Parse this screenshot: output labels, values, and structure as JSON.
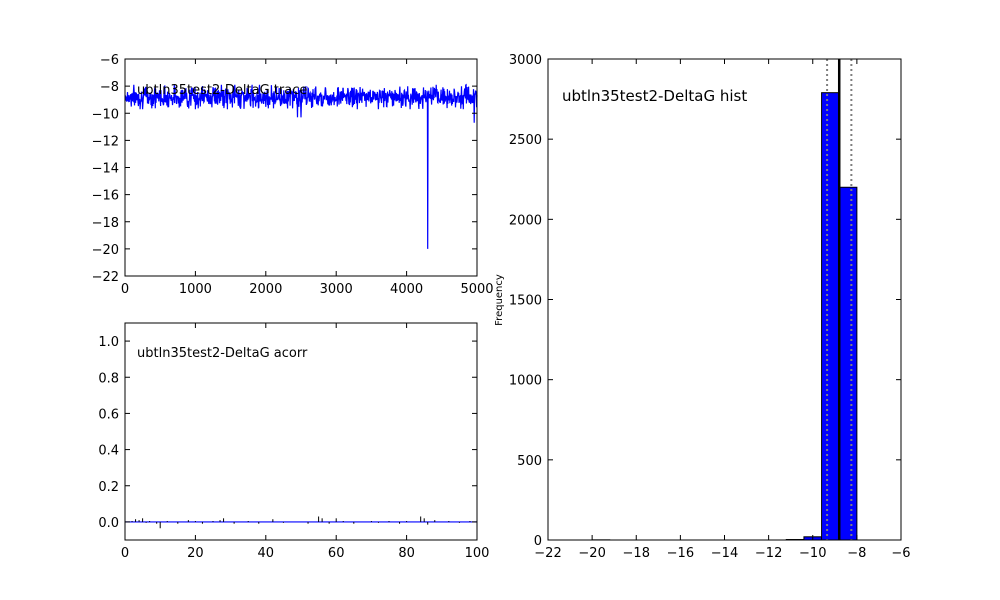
{
  "chart_data": [
    {
      "type": "line",
      "title": "ubtln35test2-DeltaG trace",
      "xlabel": "",
      "ylabel": "",
      "xlim": [
        0,
        5000
      ],
      "ylim": [
        -22,
        -6
      ],
      "x_ticks": [
        "0",
        "1000",
        "2000",
        "3000",
        "4000",
        "5000"
      ],
      "y_ticks": [
        "−6",
        "−8",
        "−10",
        "−12",
        "−14",
        "−16",
        "−18",
        "−20",
        "−22"
      ],
      "series_color": "#0000ff",
      "baseline_mean": -8.8,
      "noise_band": [
        -9.7,
        -7.9
      ],
      "outliers": [
        {
          "x": 4300,
          "y": -20.0
        },
        {
          "x": 1000,
          "y": -9.7
        },
        {
          "x": 2450,
          "y": -10.3
        },
        {
          "x": 2500,
          "y": -10.3
        },
        {
          "x": 4960,
          "y": -10.7
        },
        {
          "x": 1560,
          "y": -7.9
        }
      ]
    },
    {
      "type": "line",
      "title": "ubtln35test2-DeltaG acorr",
      "xlabel": "",
      "ylabel": "",
      "xlim": [
        0,
        100
      ],
      "ylim": [
        -0.1,
        1.1
      ],
      "x_ticks": [
        "0",
        "20",
        "40",
        "60",
        "80",
        "100"
      ],
      "y_ticks": [
        "0.0",
        "0.2",
        "0.4",
        "0.6",
        "0.8",
        "1.0"
      ],
      "series_color": "#0000ff",
      "lag_values": [
        [
          1,
          0.0
        ],
        [
          2,
          0.005
        ],
        [
          3,
          0.015
        ],
        [
          4,
          0.01
        ],
        [
          5,
          0.02
        ],
        [
          6,
          -0.005
        ],
        [
          7,
          0.005
        ],
        [
          8,
          0.0
        ],
        [
          9,
          -0.01
        ],
        [
          10,
          -0.035
        ],
        [
          11,
          0.0
        ],
        [
          12,
          0.005
        ],
        [
          15,
          -0.01
        ],
        [
          18,
          0.01
        ],
        [
          20,
          0.005
        ],
        [
          22,
          -0.01
        ],
        [
          25,
          0.005
        ],
        [
          27,
          0.01
        ],
        [
          28,
          0.02
        ],
        [
          31,
          -0.01
        ],
        [
          35,
          0.005
        ],
        [
          38,
          -0.01
        ],
        [
          42,
          0.015
        ],
        [
          45,
          -0.005
        ],
        [
          50,
          0.0
        ],
        [
          52,
          -0.01
        ],
        [
          55,
          0.03
        ],
        [
          56,
          0.02
        ],
        [
          58,
          -0.01
        ],
        [
          60,
          0.02
        ],
        [
          62,
          0.005
        ],
        [
          65,
          -0.01
        ],
        [
          70,
          0.005
        ],
        [
          72,
          -0.005
        ],
        [
          75,
          0.005
        ],
        [
          78,
          -0.01
        ],
        [
          80,
          0.005
        ],
        [
          84,
          0.03
        ],
        [
          85,
          0.02
        ],
        [
          86,
          -0.015
        ],
        [
          88,
          0.01
        ],
        [
          92,
          0.005
        ],
        [
          95,
          -0.005
        ],
        [
          98,
          0.005
        ]
      ]
    },
    {
      "type": "bar",
      "title": "ubtln35test2-DeltaG hist",
      "xlabel": "",
      "ylabel": "Frequency",
      "xlim": [
        -22,
        -6
      ],
      "ylim": [
        0,
        3000
      ],
      "x_ticks": [
        "−22",
        "−20",
        "−18",
        "−16",
        "−14",
        "−12",
        "−10",
        "−8",
        "−6"
      ],
      "y_ticks": [
        "0",
        "500",
        "1000",
        "1500",
        "2000",
        "2500",
        "3000"
      ],
      "bar_color": "#0000ff",
      "bins": [
        {
          "from": -20.0,
          "to": -19.2,
          "value": 1
        },
        {
          "from": -19.2,
          "to": -18.4,
          "value": 0
        },
        {
          "from": -18.4,
          "to": -17.6,
          "value": 0
        },
        {
          "from": -17.6,
          "to": -16.8,
          "value": 0
        },
        {
          "from": -16.8,
          "to": -16.0,
          "value": 0
        },
        {
          "from": -16.0,
          "to": -15.2,
          "value": 0
        },
        {
          "from": -15.2,
          "to": -14.4,
          "value": 0
        },
        {
          "from": -14.4,
          "to": -13.6,
          "value": 0
        },
        {
          "from": -13.6,
          "to": -12.8,
          "value": 0
        },
        {
          "from": -12.8,
          "to": -12.0,
          "value": 0
        },
        {
          "from": -12.0,
          "to": -11.2,
          "value": 0
        },
        {
          "from": -11.2,
          "to": -10.4,
          "value": 3
        },
        {
          "from": -10.4,
          "to": -9.6,
          "value": 20
        },
        {
          "from": -9.6,
          "to": -8.8,
          "value": 2790
        },
        {
          "from": -8.8,
          "to": -8.0,
          "value": 2200
        }
      ],
      "mean_line": -8.8,
      "std_lines": [
        -9.35,
        -8.25
      ],
      "grid": false
    }
  ]
}
